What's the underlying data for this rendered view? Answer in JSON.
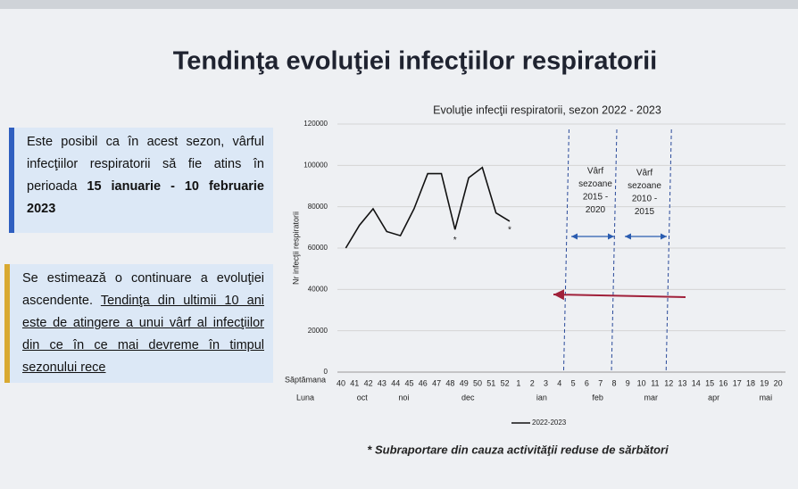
{
  "slide": {
    "title": "Tendinţa evoluţiei infecţiilor respiratorii",
    "box1": {
      "text": "Este posibil ca în acest sezon, vârful infecţiilor respiratorii să fie atins în perioada ",
      "bold": "15 ianuarie - 10 februarie 2023"
    },
    "box2": {
      "text": "Se estimează o continuare a evoluţiei ascendente. ",
      "underline": "Tendinţa din ultimii 10 ani este de atingere a unui vârf al infecţiilor din ce în ce mai devreme în timpul sezonului rece"
    },
    "footnote": "* Subraportare din cauza activităţii reduse de sărbători"
  },
  "chart_data": {
    "type": "line",
    "title": "Evoluţie infecţii respiratorii, sezon 2022 - 2023",
    "x_label": "Săptămana",
    "month_row_label": "Luna",
    "y_label": "Nr infecţii respiratorii",
    "categories": [
      40,
      41,
      42,
      43,
      44,
      45,
      46,
      47,
      48,
      49,
      50,
      51,
      52,
      1,
      2,
      3,
      4,
      5,
      6,
      7,
      8,
      9,
      10,
      11,
      12,
      13,
      14,
      15,
      16,
      17,
      18,
      19,
      20
    ],
    "months": [
      "oct",
      "noi",
      "dec",
      "ian",
      "feb",
      "mar",
      "apr",
      "mai"
    ],
    "series": [
      {
        "name": "2022-2023",
        "color": "#111111",
        "values": [
          60000,
          71000,
          79000,
          68000,
          66000,
          79000,
          96000,
          96000,
          69000,
          94000,
          99000,
          77000,
          73000,
          null,
          null,
          null,
          null,
          null,
          null,
          null,
          null,
          null,
          null,
          null,
          null,
          null,
          null,
          null,
          null,
          null,
          null,
          null,
          null
        ]
      }
    ],
    "ylim": [
      0,
      120000
    ],
    "yticks": [
      0,
      20000,
      40000,
      60000,
      80000,
      100000,
      120000
    ],
    "grid": true,
    "annotations": [
      {
        "lines": [
          "Vârf",
          "sezoane",
          "2015 -",
          "2020"
        ]
      },
      {
        "lines": [
          "Vârf",
          "sezoane",
          "2010 -",
          "2015"
        ]
      },
      {
        "text": "*"
      },
      {
        "text": "*"
      }
    ]
  }
}
